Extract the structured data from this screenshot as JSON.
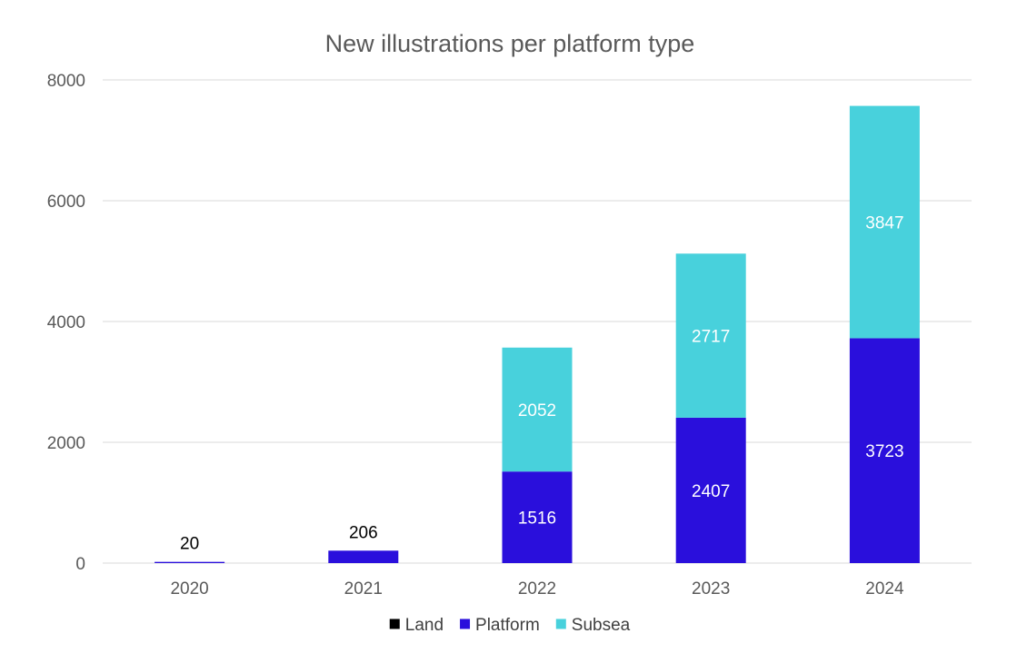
{
  "chart_data": {
    "type": "bar",
    "stacked": true,
    "title": "New illustrations per platform type",
    "categories": [
      "2020",
      "2021",
      "2022",
      "2023",
      "2024"
    ],
    "series": [
      {
        "name": "Land",
        "color": "#000000",
        "values": [
          0,
          0,
          0,
          0,
          0
        ],
        "labels": [
          "",
          "",
          "",
          "",
          ""
        ]
      },
      {
        "name": "Platform",
        "color": "#2a0fdc",
        "values": [
          20,
          206,
          1516,
          2407,
          3723
        ],
        "labels": [
          "20",
          "206",
          "1516",
          "2407",
          "3723"
        ]
      },
      {
        "name": "Subsea",
        "color": "#48d1dc",
        "values": [
          0,
          0,
          2052,
          2717,
          3847
        ],
        "labels": [
          "",
          "",
          "2052",
          "2717",
          "3847"
        ]
      }
    ],
    "ylim": [
      0,
      8000
    ],
    "yticks": [
      0,
      2000,
      4000,
      6000,
      8000
    ],
    "ytick_labels": [
      "0",
      "2000",
      "4000",
      "6000",
      "8000"
    ],
    "grid": true,
    "legend": "bottom",
    "label_colors": {
      "inside": "#ffffff",
      "above": "#000000"
    }
  }
}
